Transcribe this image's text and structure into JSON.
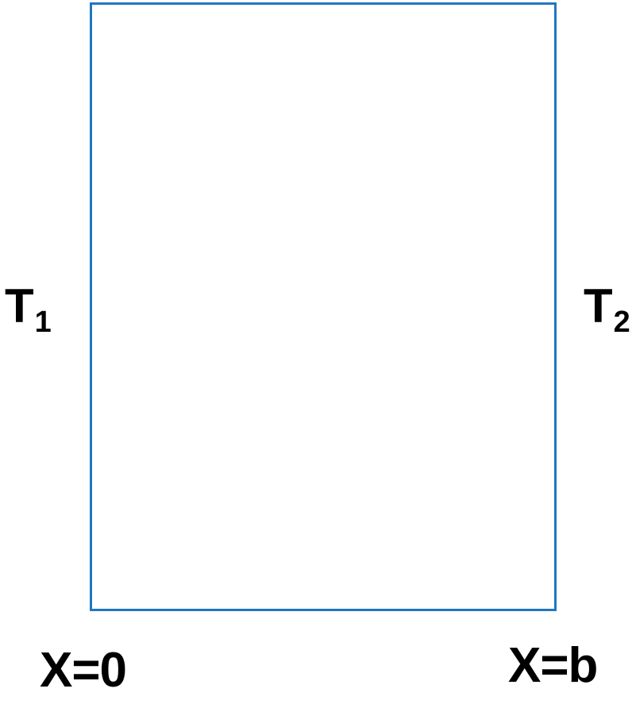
{
  "colors": {
    "boundary": "#1f77c0",
    "text": "#000000",
    "background": "#ffffff"
  },
  "left_temperature": {
    "symbol": "T",
    "subscript": "1"
  },
  "right_temperature": {
    "symbol": "T",
    "subscript": "2"
  },
  "left_position": "X=0",
  "right_position": "X=b"
}
